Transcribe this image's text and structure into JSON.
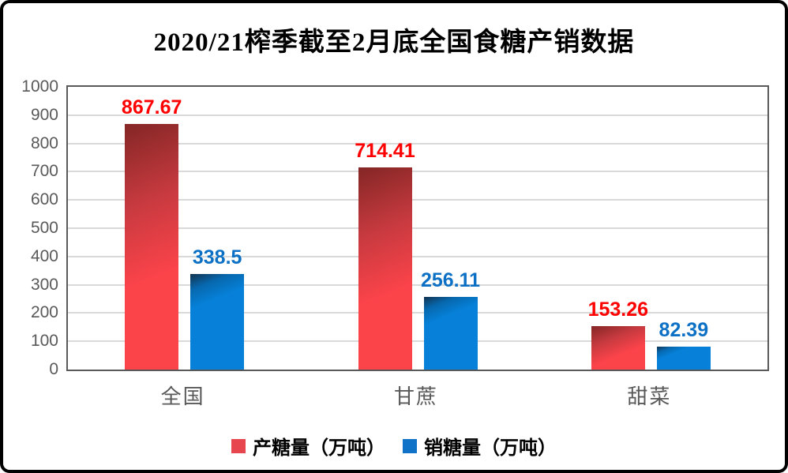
{
  "title": "2020/21榨季截至2月底全国食糖产销数据",
  "chart_data": {
    "type": "bar",
    "categories": [
      "全国",
      "甘蔗",
      "甜菜"
    ],
    "series": [
      {
        "name": "产糖量（万吨）",
        "values": [
          867.67,
          714.41,
          153.26
        ],
        "labels": [
          "867.67",
          "714.41",
          "153.26"
        ],
        "label_color": "#FF0000",
        "legend_color": "#E8464F",
        "gradient": [
          "#842625",
          "#C73A3F",
          "#FB434A"
        ],
        "gradient_stops": [
          0,
          32,
          62
        ]
      },
      {
        "name": "销糖量（万吨）",
        "values": [
          338.5,
          256.11,
          82.39
        ],
        "labels": [
          "338.5",
          "256.11",
          "82.39"
        ],
        "label_color": "#0C70C5",
        "legend_color": "#1073C8",
        "gradient": [
          "#12324E",
          "#0768AE",
          "#0680D8"
        ],
        "gradient_stops": [
          0,
          14,
          30
        ]
      }
    ],
    "ylim": [
      0,
      1000
    ],
    "y_ticks": [
      0,
      100,
      200,
      300,
      400,
      500,
      600,
      700,
      800,
      900,
      1000
    ],
    "xlabel": "",
    "ylabel": "",
    "grid": true,
    "legend_position": "bottom"
  },
  "colors": {
    "axis_text": "#595959",
    "gridline": "#D9D9D9",
    "plot_border": "#595959",
    "title_text": "#000000",
    "frame_border": "#000000",
    "background": "#FFFFFF"
  }
}
